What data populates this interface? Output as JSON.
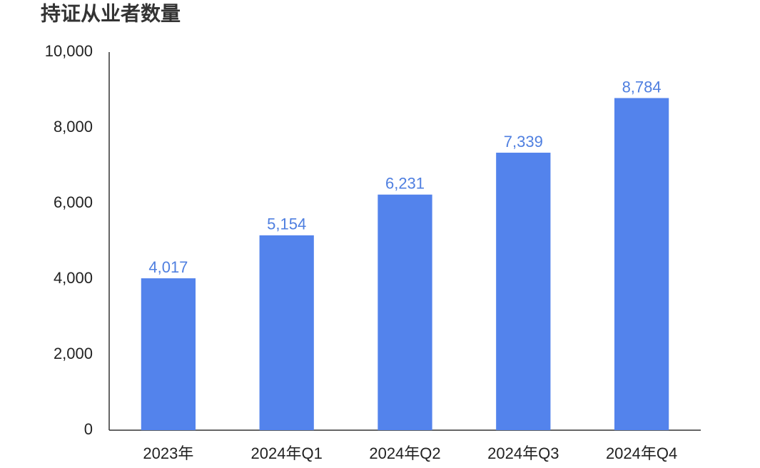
{
  "chart_data": {
    "type": "bar",
    "title": "持证从业者数量",
    "categories": [
      "2023年",
      "2024年Q1",
      "2024年Q2",
      "2024年Q3",
      "2024年Q4"
    ],
    "values": [
      4017,
      5154,
      6231,
      7339,
      8784
    ],
    "value_labels": [
      "4,017",
      "5,154",
      "6,231",
      "7,339",
      "8,784"
    ],
    "color": "#5383ec",
    "ylim": [
      0,
      10000
    ],
    "yticks": [
      0,
      {
        "value": 2000,
        "label": "2,000"
      },
      {
        "value": 4000,
        "label": "4,000"
      },
      {
        "value": 6000,
        "label": "6,000"
      },
      {
        "value": 8000,
        "label": "8,000"
      },
      {
        "value": 10000,
        "label": "10,000"
      }
    ],
    "grid": false
  }
}
